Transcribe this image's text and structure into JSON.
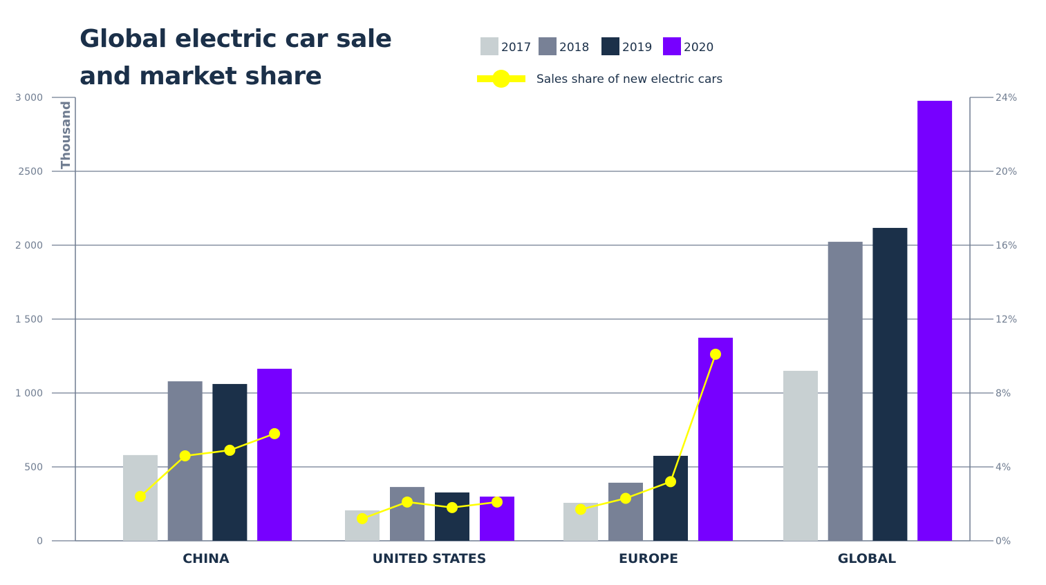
{
  "chart_data": {
    "type": "bar",
    "title": "Global electric car sale and market share",
    "ylabel": "Thousand",
    "ylim": [
      0,
      3000
    ],
    "y2lim": [
      0,
      24
    ],
    "yticks": [
      "0",
      "500",
      "1 000",
      "1 500",
      "2 000",
      "2500",
      "3 000"
    ],
    "y2ticks": [
      "0%",
      "4%",
      "8%",
      "12%",
      "16%",
      "20%",
      "24%"
    ],
    "grid": true,
    "legend_position": "top",
    "categories": [
      "CHINA",
      "UNITED STATES",
      "EUROPE",
      "GLOBAL"
    ],
    "series": [
      {
        "name": "2017",
        "color": "#c8d0d2",
        "values": [
          580,
          206,
          257,
          1150
        ]
      },
      {
        "name": "2018",
        "color": "#788196",
        "values": [
          1079,
          364,
          393,
          2023
        ]
      },
      {
        "name": "2019",
        "color": "#1b3049",
        "values": [
          1061,
          327,
          575,
          2117
        ]
      },
      {
        "name": "2020",
        "color": "#7700ff",
        "values": [
          1164,
          299,
          1374,
          2977
        ]
      }
    ],
    "line_series": {
      "name": "Sales share of new electric cars",
      "color": "#ffff00",
      "axis": "right",
      "values": [
        [
          2.4,
          4.6,
          4.9,
          5.8
        ],
        [
          1.2,
          2.1,
          1.8,
          2.1
        ],
        [
          1.7,
          2.3,
          3.2,
          10.1
        ],
        null
      ]
    }
  }
}
